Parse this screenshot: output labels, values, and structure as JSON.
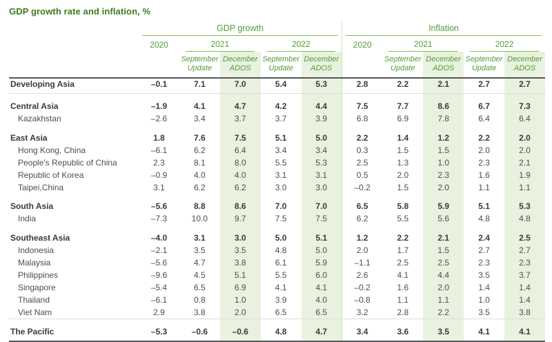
{
  "page": {
    "title": "GDP growth rate and inflation, %"
  },
  "colors": {
    "title_green": "#3a7d1e",
    "header_green": "#519b35",
    "underline_green": "#83b954",
    "column_shade": "#e9f2df",
    "group_divider": "#cfe2ba",
    "rule_dark": "#55565a",
    "rule_light": "#dcdcdc",
    "body_text": "#4d4d4d",
    "region_text": "#3a3a3a"
  },
  "chart_data": {
    "type": "table",
    "title": "GDP growth rate and inflation, %",
    "column_groups": [
      "GDP growth",
      "Inflation"
    ],
    "years": [
      "2020",
      "2021",
      "2022"
    ],
    "subcolumns": [
      "September Update",
      "December ADOS"
    ],
    "sections": [
      {
        "rows": [
          {
            "economy": "Developing Asia",
            "level": "region",
            "gdp_growth": [
              "–0.1",
              "7.1",
              "7.0",
              "5.4",
              "5.3"
            ],
            "inflation": [
              "2.8",
              "2.2",
              "2.1",
              "2.7",
              "2.7"
            ]
          }
        ]
      },
      {
        "rows": [
          {
            "economy": "Central Asia",
            "level": "region",
            "gdp_growth": [
              "–1.9",
              "4.1",
              "4.7",
              "4.2",
              "4.4"
            ],
            "inflation": [
              "7.5",
              "7.7",
              "8.6",
              "6.7",
              "7.3"
            ]
          },
          {
            "economy": "Kazakhstan",
            "level": "economy",
            "gdp_growth": [
              "–2.6",
              "3.4",
              "3.7",
              "3.7",
              "3.9"
            ],
            "inflation": [
              "6.8",
              "6.9",
              "7.8",
              "6.4",
              "6.4"
            ]
          }
        ]
      },
      {
        "rows": [
          {
            "economy": "East Asia",
            "level": "region",
            "gdp_growth": [
              "1.8",
              "7.6",
              "7.5",
              "5.1",
              "5.0"
            ],
            "inflation": [
              "2.2",
              "1.4",
              "1.2",
              "2.2",
              "2.0"
            ]
          },
          {
            "economy": "Hong Kong, China",
            "level": "economy",
            "gdp_growth": [
              "–6.1",
              "6.2",
              "6.4",
              "3.4",
              "3.4"
            ],
            "inflation": [
              "0.3",
              "1.5",
              "1.5",
              "2.0",
              "2.0"
            ]
          },
          {
            "economy": "People's Republic of China",
            "level": "economy",
            "gdp_growth": [
              "2.3",
              "8.1",
              "8.0",
              "5.5",
              "5.3"
            ],
            "inflation": [
              "2.5",
              "1.3",
              "1.0",
              "2.3",
              "2.1"
            ]
          },
          {
            "economy": "Republic of Korea",
            "level": "economy",
            "gdp_growth": [
              "–0.9",
              "4.0",
              "4.0",
              "3.1",
              "3.1"
            ],
            "inflation": [
              "0.5",
              "2.0",
              "2.3",
              "1.6",
              "1.9"
            ]
          },
          {
            "economy": "Taipei,China",
            "level": "economy",
            "gdp_growth": [
              "3.1",
              "6.2",
              "6.2",
              "3.0",
              "3.0"
            ],
            "inflation": [
              "–0.2",
              "1.5",
              "2.0",
              "1.1",
              "1.1"
            ]
          }
        ]
      },
      {
        "rows": [
          {
            "economy": "South Asia",
            "level": "region",
            "gdp_growth": [
              "–5.6",
              "8.8",
              "8.6",
              "7.0",
              "7.0"
            ],
            "inflation": [
              "6.5",
              "5.8",
              "5.9",
              "5.1",
              "5.3"
            ]
          },
          {
            "economy": "India",
            "level": "economy",
            "gdp_growth": [
              "–7.3",
              "10.0",
              "9.7",
              "7.5",
              "7.5"
            ],
            "inflation": [
              "6.2",
              "5.5",
              "5.6",
              "4.8",
              "4.8"
            ]
          }
        ]
      },
      {
        "rows": [
          {
            "economy": "Southeast Asia",
            "level": "region",
            "gdp_growth": [
              "–4.0",
              "3.1",
              "3.0",
              "5.0",
              "5.1"
            ],
            "inflation": [
              "1.2",
              "2.2",
              "2.1",
              "2.4",
              "2.5"
            ]
          },
          {
            "economy": "Indonesia",
            "level": "economy",
            "gdp_growth": [
              "–2.1",
              "3.5",
              "3.5",
              "4.8",
              "5.0"
            ],
            "inflation": [
              "2.0",
              "1.7",
              "1.5",
              "2.7",
              "2.7"
            ]
          },
          {
            "economy": "Malaysia",
            "level": "economy",
            "gdp_growth": [
              "–5.6",
              "4.7",
              "3.8",
              "6.1",
              "5.9"
            ],
            "inflation": [
              "–1.1",
              "2.5",
              "2.5",
              "2.3",
              "2.3"
            ]
          },
          {
            "economy": "Philippines",
            "level": "economy",
            "gdp_growth": [
              "–9.6",
              "4.5",
              "5.1",
              "5.5",
              "6.0"
            ],
            "inflation": [
              "2.6",
              "4.1",
              "4.4",
              "3.5",
              "3.7"
            ]
          },
          {
            "economy": "Singapore",
            "level": "economy",
            "gdp_growth": [
              "–5.4",
              "6.5",
              "6.9",
              "4.1",
              "4.1"
            ],
            "inflation": [
              "–0.2",
              "1.6",
              "2.0",
              "1.4",
              "1.4"
            ]
          },
          {
            "economy": "Thailand",
            "level": "economy",
            "gdp_growth": [
              "–6.1",
              "0.8",
              "1.0",
              "3.9",
              "4.0"
            ],
            "inflation": [
              "–0.8",
              "1.1",
              "1.1",
              "1.0",
              "1.4"
            ]
          },
          {
            "economy": "Viet Nam",
            "level": "economy",
            "gdp_growth": [
              "2.9",
              "3.8",
              "2.0",
              "6.5",
              "6.5"
            ],
            "inflation": [
              "3.2",
              "2.8",
              "2.2",
              "3.5",
              "3.8"
            ]
          }
        ]
      },
      {
        "rows": [
          {
            "economy": "The Pacific",
            "level": "region",
            "gdp_growth": [
              "–5.3",
              "–0.6",
              "–0.6",
              "4.8",
              "4.7"
            ],
            "inflation": [
              "3.4",
              "3.6",
              "3.5",
              "4.1",
              "4.1"
            ]
          }
        ]
      }
    ]
  }
}
